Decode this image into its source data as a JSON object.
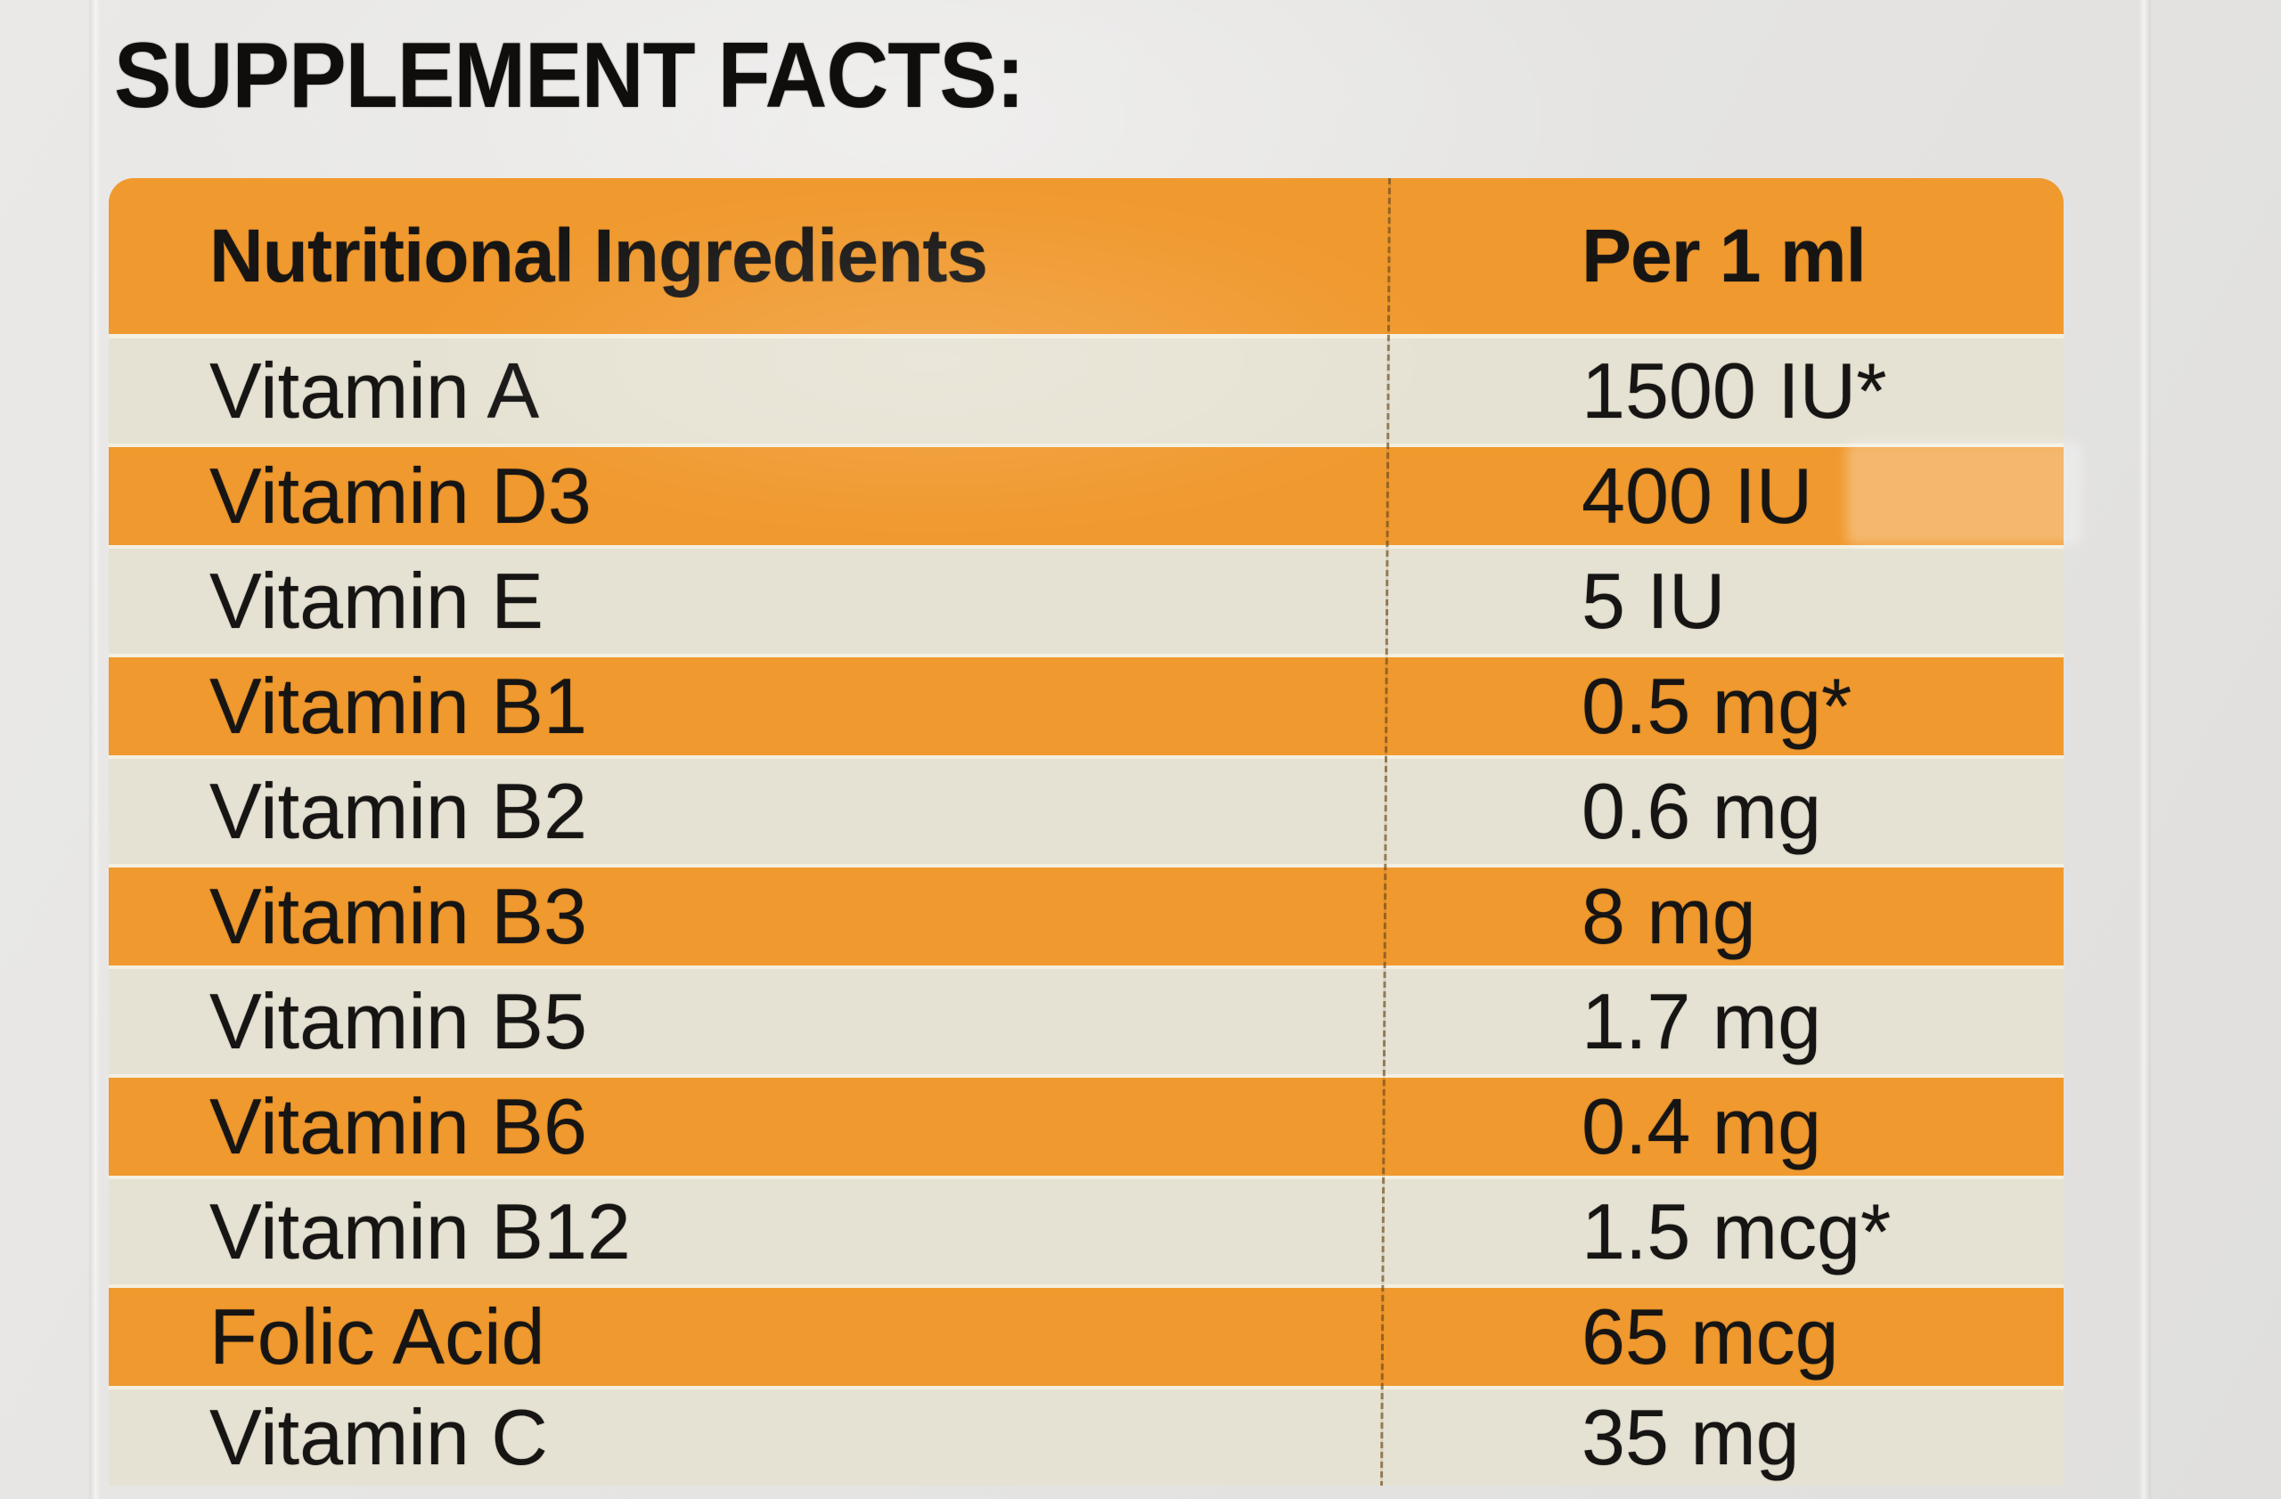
{
  "title": "SUPPLEMENT FACTS:",
  "table": {
    "header": {
      "ingredient": "Nutritional Ingredients",
      "amount": "Per 1 ml"
    },
    "rows": [
      {
        "name": "Vitamin A",
        "value": "1500 IU*"
      },
      {
        "name": "Vitamin D3",
        "value": "400 IU"
      },
      {
        "name": "Vitamin E",
        "value": "5 IU"
      },
      {
        "name": "Vitamin B1",
        "value": "0.5 mg*"
      },
      {
        "name": "Vitamin B2",
        "value": "0.6 mg"
      },
      {
        "name": "Vitamin B3",
        "value": "8 mg"
      },
      {
        "name": "Vitamin B5",
        "value": "1.7 mg"
      },
      {
        "name": "Vitamin B6",
        "value": "0.4 mg"
      },
      {
        "name": "Vitamin B12",
        "value": "1.5 mcg*"
      },
      {
        "name": "Folic Acid",
        "value": "65 mcg"
      },
      {
        "name": "Vitamin C",
        "value": "35 mg"
      }
    ],
    "colors": {
      "orange_stripe": "#F0992E",
      "cream_stripe": "#E6E2D3",
      "divider_line": "#6B4A1C",
      "background": "#E4E3E1",
      "text": "#161514"
    }
  }
}
